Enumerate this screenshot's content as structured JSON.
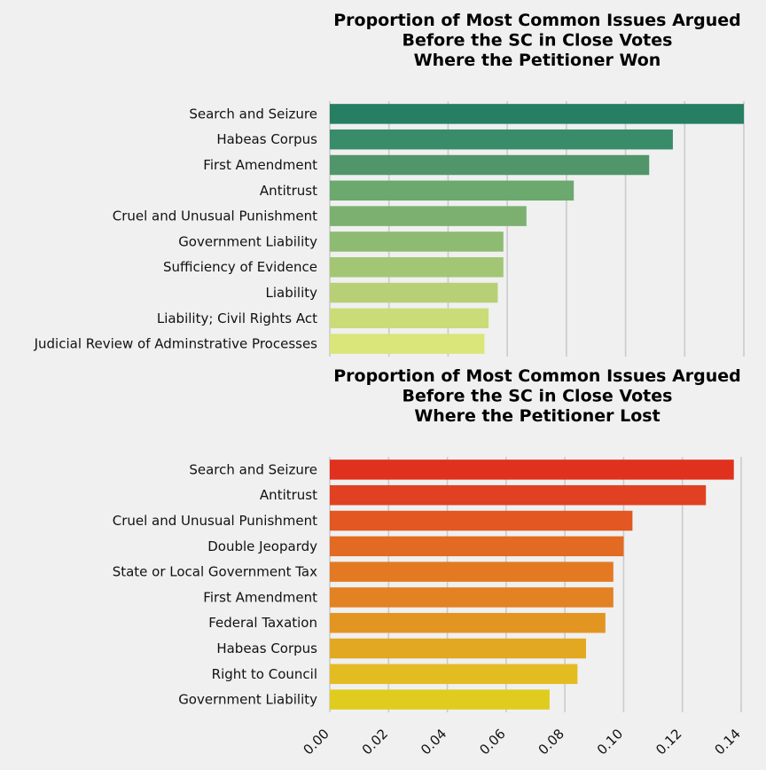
{
  "chart_data": [
    {
      "type": "bar",
      "orientation": "horizontal",
      "title": "Proportion of Most Common Issues Argued\nBefore the SC in Close Votes\nWhere the Petitioner Won",
      "categories": [
        "Search and Seizure",
        "Habeas Corpus",
        "First Amendment",
        "Antitrust",
        "Cruel and Unusual Punishment",
        "Government Liability",
        "Sufficiency of Evidence",
        "Liability",
        "Liability; Civil Rights Act",
        "Judicial Review of Adminstrative Processes"
      ],
      "values": [
        0.14,
        0.116,
        0.108,
        0.0825,
        0.0665,
        0.0587,
        0.0587,
        0.0568,
        0.0537,
        0.0523
      ],
      "colors": [
        "#267e63",
        "#388c69",
        "#51966a",
        "#6ca96f",
        "#7cb071",
        "#8ebb72",
        "#a2c674",
        "#b7d076",
        "#c9dc78",
        "#dae57a"
      ],
      "xlim": [
        0,
        0.1427
      ],
      "grid": true,
      "xticks": [
        "0.00",
        "0.02",
        "0.04",
        "0.06",
        "0.08",
        "0.10",
        "0.12",
        "0.14"
      ],
      "show_xtick_labels": false
    },
    {
      "type": "bar",
      "orientation": "horizontal",
      "title": "Proportion of Most Common Issues Argued\nBefore the SC in Close Votes\nWhere the Petitioner Lost",
      "categories": [
        "Search and Seizure",
        "Antitrust",
        "Cruel and Unusual Punishment",
        "Double Jeopardy",
        "State or Local Government Tax",
        "First Amendment",
        "Federal Taxation",
        "Habeas Corpus",
        "Right to Council",
        "Government Liability"
      ],
      "values": [
        0.1375,
        0.128,
        0.103,
        0.1,
        0.0965,
        0.0965,
        0.0938,
        0.0872,
        0.0843,
        0.0748
      ],
      "colors": [
        "#e0301e",
        "#e04122",
        "#e35722",
        "#e36a22",
        "#e37a22",
        "#e38222",
        "#e39522",
        "#e3a822",
        "#e3bc22",
        "#e0cc1f"
      ],
      "xlim": [
        0,
        0.14
      ],
      "grid": true,
      "xticks": [
        "0.00",
        "0.02",
        "0.04",
        "0.06",
        "0.08",
        "0.10",
        "0.12",
        "0.14"
      ],
      "show_xtick_labels": true
    }
  ]
}
